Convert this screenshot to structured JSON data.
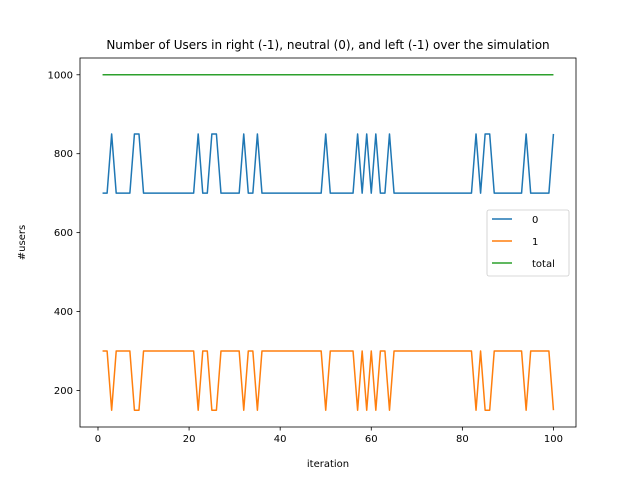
{
  "chart_data": {
    "type": "line",
    "title": "Number of Users in right (-1), neutral (0), and left (-1) over the simulation",
    "xlabel": "iteration",
    "ylabel": "#users",
    "xlim": [
      -3.95,
      104.95
    ],
    "ylim": [
      107.5,
      1042.5
    ],
    "xticks": [
      0,
      20,
      40,
      60,
      80,
      100
    ],
    "yticks": [
      200,
      400,
      600,
      800,
      1000
    ],
    "grid": false,
    "legend_position": "center-right",
    "x": [
      1,
      2,
      3,
      4,
      5,
      6,
      7,
      8,
      9,
      10,
      11,
      12,
      13,
      14,
      15,
      16,
      17,
      18,
      19,
      20,
      21,
      22,
      23,
      24,
      25,
      26,
      27,
      28,
      29,
      30,
      31,
      32,
      33,
      34,
      35,
      36,
      37,
      38,
      39,
      40,
      41,
      42,
      43,
      44,
      45,
      46,
      47,
      48,
      49,
      50,
      51,
      52,
      53,
      54,
      55,
      56,
      57,
      58,
      59,
      60,
      61,
      62,
      63,
      64,
      65,
      66,
      67,
      68,
      69,
      70,
      71,
      72,
      73,
      74,
      75,
      76,
      77,
      78,
      79,
      80,
      81,
      82,
      83,
      84,
      85,
      86,
      87,
      88,
      89,
      90,
      91,
      92,
      93,
      94,
      95,
      96,
      97,
      98,
      99,
      100
    ],
    "series": [
      {
        "name": "0",
        "color": "#1f77b4",
        "values": [
          700,
          700,
          850,
          700,
          700,
          700,
          700,
          850,
          850,
          700,
          700,
          700,
          700,
          700,
          700,
          700,
          700,
          700,
          700,
          700,
          700,
          850,
          700,
          700,
          850,
          850,
          700,
          700,
          700,
          700,
          700,
          850,
          700,
          700,
          850,
          700,
          700,
          700,
          700,
          700,
          700,
          700,
          700,
          700,
          700,
          700,
          700,
          700,
          700,
          850,
          700,
          700,
          700,
          700,
          700,
          700,
          850,
          700,
          850,
          700,
          850,
          700,
          700,
          850,
          700,
          700,
          700,
          700,
          700,
          700,
          700,
          700,
          700,
          700,
          700,
          700,
          700,
          700,
          700,
          700,
          700,
          700,
          850,
          700,
          850,
          850,
          700,
          700,
          700,
          700,
          700,
          700,
          700,
          850,
          700,
          700,
          700,
          700,
          700,
          850
        ]
      },
      {
        "name": "1",
        "color": "#ff7f0e",
        "values": [
          300,
          300,
          150,
          300,
          300,
          300,
          300,
          150,
          150,
          300,
          300,
          300,
          300,
          300,
          300,
          300,
          300,
          300,
          300,
          300,
          300,
          150,
          300,
          300,
          150,
          150,
          300,
          300,
          300,
          300,
          300,
          150,
          300,
          300,
          150,
          300,
          300,
          300,
          300,
          300,
          300,
          300,
          300,
          300,
          300,
          300,
          300,
          300,
          300,
          150,
          300,
          300,
          300,
          300,
          300,
          300,
          150,
          300,
          150,
          300,
          150,
          300,
          300,
          150,
          300,
          300,
          300,
          300,
          300,
          300,
          300,
          300,
          300,
          300,
          300,
          300,
          300,
          300,
          300,
          300,
          300,
          300,
          150,
          300,
          150,
          150,
          300,
          300,
          300,
          300,
          300,
          300,
          300,
          150,
          300,
          300,
          300,
          300,
          300,
          150
        ]
      },
      {
        "name": "total",
        "color": "#2ca02c",
        "values": [
          1000,
          1000,
          1000,
          1000,
          1000,
          1000,
          1000,
          1000,
          1000,
          1000,
          1000,
          1000,
          1000,
          1000,
          1000,
          1000,
          1000,
          1000,
          1000,
          1000,
          1000,
          1000,
          1000,
          1000,
          1000,
          1000,
          1000,
          1000,
          1000,
          1000,
          1000,
          1000,
          1000,
          1000,
          1000,
          1000,
          1000,
          1000,
          1000,
          1000,
          1000,
          1000,
          1000,
          1000,
          1000,
          1000,
          1000,
          1000,
          1000,
          1000,
          1000,
          1000,
          1000,
          1000,
          1000,
          1000,
          1000,
          1000,
          1000,
          1000,
          1000,
          1000,
          1000,
          1000,
          1000,
          1000,
          1000,
          1000,
          1000,
          1000,
          1000,
          1000,
          1000,
          1000,
          1000,
          1000,
          1000,
          1000,
          1000,
          1000,
          1000,
          1000,
          1000,
          1000,
          1000,
          1000,
          1000,
          1000,
          1000,
          1000,
          1000,
          1000,
          1000,
          1000,
          1000,
          1000,
          1000,
          1000,
          1000,
          1000
        ]
      }
    ]
  }
}
